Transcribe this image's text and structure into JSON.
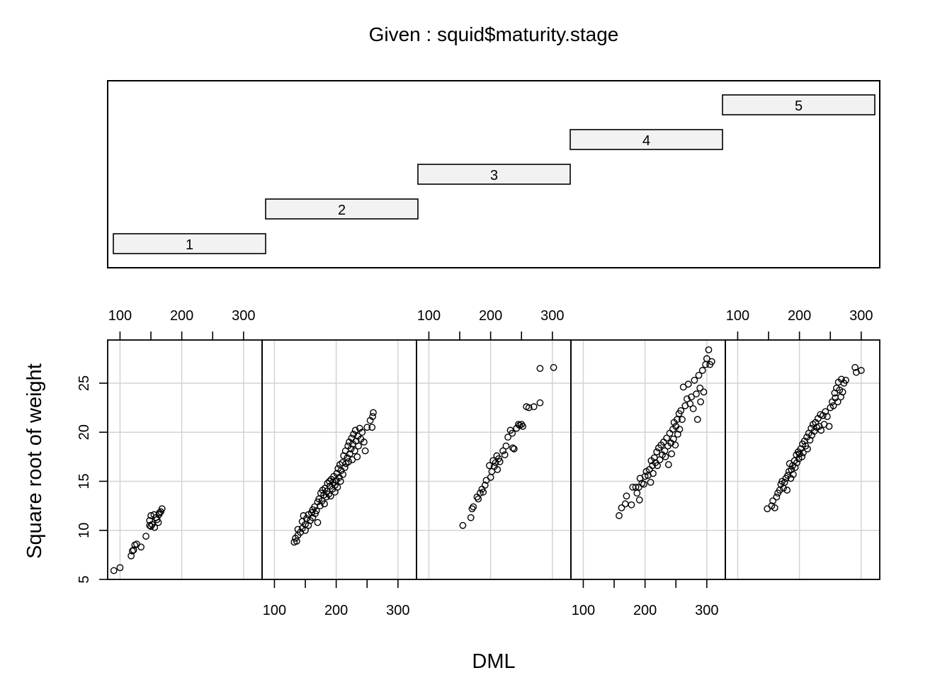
{
  "chart_data": {
    "type": "scatter",
    "title": "Given : squid$maturity.stage",
    "xlabel": "DML",
    "ylabel": "Square root of weight",
    "xlim": [
      80,
      330
    ],
    "ylim": [
      5,
      29.4
    ],
    "x_ticks": [
      100,
      200,
      300
    ],
    "x_minor_ticks": [
      100,
      150,
      200,
      250,
      300
    ],
    "y_ticks": [
      5,
      10,
      15,
      20,
      25
    ],
    "grid": true,
    "given_levels": [
      "1",
      "2",
      "3",
      "4",
      "5"
    ],
    "panels": [
      {
        "level": "1",
        "points": [
          [
            90,
            5.9
          ],
          [
            100,
            6.2
          ],
          [
            118,
            7.4
          ],
          [
            120,
            7.9
          ],
          [
            122,
            8.0
          ],
          [
            124,
            8.5
          ],
          [
            127,
            8.6
          ],
          [
            134,
            8.3
          ],
          [
            142,
            9.4
          ],
          [
            148,
            10.5
          ],
          [
            148,
            11.0
          ],
          [
            150,
            10.4
          ],
          [
            150,
            11.5
          ],
          [
            152,
            10.6
          ],
          [
            155,
            11.6
          ],
          [
            156,
            10.3
          ],
          [
            158,
            11.3
          ],
          [
            160,
            11.1
          ],
          [
            162,
            10.8
          ],
          [
            163,
            11.6
          ],
          [
            164,
            11.8
          ],
          [
            166,
            11.9
          ],
          [
            168,
            12.2
          ]
        ]
      },
      {
        "level": "2",
        "points": [
          [
            132,
            8.8
          ],
          [
            134,
            9.2
          ],
          [
            136,
            8.9
          ],
          [
            138,
            9.5
          ],
          [
            138,
            10.1
          ],
          [
            142,
            9.8
          ],
          [
            145,
            10.2
          ],
          [
            145,
            10.9
          ],
          [
            147,
            11.5
          ],
          [
            150,
            10.0
          ],
          [
            150,
            10.6
          ],
          [
            152,
            11.2
          ],
          [
            155,
            10.5
          ],
          [
            155,
            11.6
          ],
          [
            158,
            11.0
          ],
          [
            160,
            11.8
          ],
          [
            162,
            12.1
          ],
          [
            162,
            11.3
          ],
          [
            165,
            12.4
          ],
          [
            166,
            11.7
          ],
          [
            168,
            12.0
          ],
          [
            170,
            10.8
          ],
          [
            170,
            12.9
          ],
          [
            172,
            13.2
          ],
          [
            174,
            12.5
          ],
          [
            175,
            13.8
          ],
          [
            177,
            13.0
          ],
          [
            178,
            14.1
          ],
          [
            180,
            13.6
          ],
          [
            181,
            12.7
          ],
          [
            182,
            14.3
          ],
          [
            184,
            13.4
          ],
          [
            185,
            14.0
          ],
          [
            186,
            14.8
          ],
          [
            188,
            13.7
          ],
          [
            189,
            15.0
          ],
          [
            190,
            14.5
          ],
          [
            191,
            13.5
          ],
          [
            192,
            15.2
          ],
          [
            194,
            14.2
          ],
          [
            195,
            14.9
          ],
          [
            196,
            15.5
          ],
          [
            198,
            13.9
          ],
          [
            198,
            14.6
          ],
          [
            200,
            15.1
          ],
          [
            201,
            15.8
          ],
          [
            202,
            14.4
          ],
          [
            203,
            16.3
          ],
          [
            205,
            15.4
          ],
          [
            206,
            16.7
          ],
          [
            207,
            15.0
          ],
          [
            208,
            16.1
          ],
          [
            210,
            16.9
          ],
          [
            211,
            15.7
          ],
          [
            212,
            17.6
          ],
          [
            214,
            16.4
          ],
          [
            215,
            18.1
          ],
          [
            216,
            16.8
          ],
          [
            218,
            17.4
          ],
          [
            219,
            18.6
          ],
          [
            220,
            17.0
          ],
          [
            221,
            19.0
          ],
          [
            222,
            17.8
          ],
          [
            224,
            18.3
          ],
          [
            225,
            19.4
          ],
          [
            226,
            17.2
          ],
          [
            227,
            18.8
          ],
          [
            228,
            19.8
          ],
          [
            230,
            18.1
          ],
          [
            231,
            20.2
          ],
          [
            232,
            19.1
          ],
          [
            234,
            17.5
          ],
          [
            235,
            19.6
          ],
          [
            236,
            18.6
          ],
          [
            238,
            20.4
          ],
          [
            240,
            19.3
          ],
          [
            242,
            20.0
          ],
          [
            245,
            19.0
          ],
          [
            247,
            18.1
          ],
          [
            250,
            20.5
          ],
          [
            255,
            21.2
          ],
          [
            258,
            20.5
          ],
          [
            259,
            21.6
          ],
          [
            260,
            22.0
          ]
        ]
      },
      {
        "level": "3",
        "points": [
          [
            155,
            10.5
          ],
          [
            168,
            11.3
          ],
          [
            170,
            12.2
          ],
          [
            172,
            12.4
          ],
          [
            178,
            13.4
          ],
          [
            180,
            13.2
          ],
          [
            183,
            13.8
          ],
          [
            186,
            14.2
          ],
          [
            188,
            13.9
          ],
          [
            191,
            14.6
          ],
          [
            193,
            15.1
          ],
          [
            198,
            16.6
          ],
          [
            200,
            15.4
          ],
          [
            202,
            16.0
          ],
          [
            204,
            17.1
          ],
          [
            206,
            16.5
          ],
          [
            208,
            16.9
          ],
          [
            210,
            17.6
          ],
          [
            211,
            16.2
          ],
          [
            213,
            17.3
          ],
          [
            215,
            17.0
          ],
          [
            220,
            18.1
          ],
          [
            223,
            17.7
          ],
          [
            225,
            18.6
          ],
          [
            228,
            19.5
          ],
          [
            232,
            20.2
          ],
          [
            235,
            19.9
          ],
          [
            236,
            18.4
          ],
          [
            238,
            18.3
          ],
          [
            242,
            20.4
          ],
          [
            245,
            20.8
          ],
          [
            247,
            20.7
          ],
          [
            250,
            20.8
          ],
          [
            252,
            20.6
          ],
          [
            258,
            22.6
          ],
          [
            262,
            22.5
          ],
          [
            270,
            22.6
          ],
          [
            280,
            23.0
          ],
          [
            280,
            26.5
          ],
          [
            302,
            26.6
          ]
        ]
      },
      {
        "level": "4",
        "points": [
          [
            158,
            11.5
          ],
          [
            162,
            12.3
          ],
          [
            168,
            12.7
          ],
          [
            170,
            13.5
          ],
          [
            178,
            12.6
          ],
          [
            180,
            14.4
          ],
          [
            185,
            14.4
          ],
          [
            187,
            13.8
          ],
          [
            190,
            14.4
          ],
          [
            191,
            13.1
          ],
          [
            192,
            15.3
          ],
          [
            195,
            14.8
          ],
          [
            198,
            14.7
          ],
          [
            200,
            15.5
          ],
          [
            202,
            16.0
          ],
          [
            205,
            15.6
          ],
          [
            207,
            16.2
          ],
          [
            209,
            14.9
          ],
          [
            210,
            17.1
          ],
          [
            212,
            16.6
          ],
          [
            213,
            15.8
          ],
          [
            215,
            17.4
          ],
          [
            217,
            16.9
          ],
          [
            219,
            18.0
          ],
          [
            220,
            16.6
          ],
          [
            222,
            18.4
          ],
          [
            224,
            17.2
          ],
          [
            226,
            18.7
          ],
          [
            228,
            17.7
          ],
          [
            230,
            19.0
          ],
          [
            232,
            18.1
          ],
          [
            233,
            17.5
          ],
          [
            235,
            19.4
          ],
          [
            237,
            18.6
          ],
          [
            238,
            16.7
          ],
          [
            240,
            19.9
          ],
          [
            242,
            18.9
          ],
          [
            243,
            17.8
          ],
          [
            245,
            20.3
          ],
          [
            246,
            19.3
          ],
          [
            247,
            21.0
          ],
          [
            249,
            18.7
          ],
          [
            250,
            20.6
          ],
          [
            252,
            21.3
          ],
          [
            253,
            19.8
          ],
          [
            255,
            21.9
          ],
          [
            256,
            20.3
          ],
          [
            258,
            22.2
          ],
          [
            260,
            21.3
          ],
          [
            262,
            24.6
          ],
          [
            265,
            22.7
          ],
          [
            268,
            23.4
          ],
          [
            270,
            24.9
          ],
          [
            273,
            22.9
          ],
          [
            275,
            23.6
          ],
          [
            278,
            22.4
          ],
          [
            280,
            25.3
          ],
          [
            283,
            23.9
          ],
          [
            285,
            21.3
          ],
          [
            287,
            25.8
          ],
          [
            289,
            24.5
          ],
          [
            290,
            23.1
          ],
          [
            293,
            26.3
          ],
          [
            295,
            24.1
          ],
          [
            298,
            26.9
          ],
          [
            300,
            27.5
          ],
          [
            303,
            28.4
          ],
          [
            305,
            26.9
          ],
          [
            308,
            27.2
          ]
        ]
      },
      {
        "level": "5",
        "points": [
          [
            148,
            12.2
          ],
          [
            155,
            12.5
          ],
          [
            157,
            13.0
          ],
          [
            160,
            12.3
          ],
          [
            163,
            13.4
          ],
          [
            165,
            13.8
          ],
          [
            168,
            14.1
          ],
          [
            170,
            14.7
          ],
          [
            172,
            15.0
          ],
          [
            174,
            14.3
          ],
          [
            176,
            14.9
          ],
          [
            178,
            15.3
          ],
          [
            180,
            14.1
          ],
          [
            181,
            15.6
          ],
          [
            183,
            16.0
          ],
          [
            184,
            16.8
          ],
          [
            186,
            15.3
          ],
          [
            187,
            16.2
          ],
          [
            189,
            16.6
          ],
          [
            190,
            15.7
          ],
          [
            192,
            17.1
          ],
          [
            193,
            16.4
          ],
          [
            195,
            17.7
          ],
          [
            196,
            16.9
          ],
          [
            198,
            18.0
          ],
          [
            199,
            17.3
          ],
          [
            200,
            17.8
          ],
          [
            202,
            18.3
          ],
          [
            204,
            17.5
          ],
          [
            205,
            18.8
          ],
          [
            206,
            17.9
          ],
          [
            208,
            19.1
          ],
          [
            210,
            18.6
          ],
          [
            212,
            19.5
          ],
          [
            213,
            18.3
          ],
          [
            215,
            19.9
          ],
          [
            217,
            19.2
          ],
          [
            219,
            20.4
          ],
          [
            220,
            19.7
          ],
          [
            222,
            20.8
          ],
          [
            224,
            20.1
          ],
          [
            226,
            21.0
          ],
          [
            228,
            20.5
          ],
          [
            230,
            21.4
          ],
          [
            232,
            20.6
          ],
          [
            234,
            21.8
          ],
          [
            235,
            20.2
          ],
          [
            238,
            21.7
          ],
          [
            240,
            20.8
          ],
          [
            242,
            22.1
          ],
          [
            245,
            21.6
          ],
          [
            248,
            20.6
          ],
          [
            250,
            22.5
          ],
          [
            253,
            23.1
          ],
          [
            255,
            22.7
          ],
          [
            257,
            24.0
          ],
          [
            258,
            23.5
          ],
          [
            260,
            24.5
          ],
          [
            262,
            23.1
          ],
          [
            263,
            25.1
          ],
          [
            265,
            24.3
          ],
          [
            267,
            23.6
          ],
          [
            268,
            25.4
          ],
          [
            270,
            24.1
          ],
          [
            272,
            25.0
          ],
          [
            275,
            25.3
          ],
          [
            290,
            26.6
          ],
          [
            292,
            26.1
          ],
          [
            300,
            26.3
          ]
        ]
      }
    ]
  }
}
